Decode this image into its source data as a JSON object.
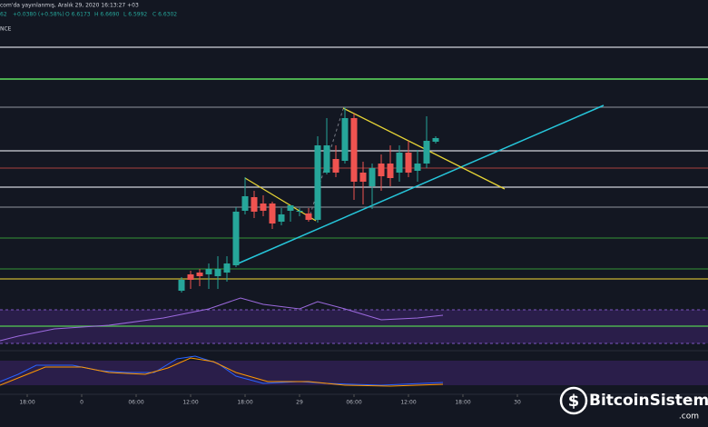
{
  "header": {
    "source": "com'da yayınlanmış, Aralık 29, 2020 16:13:27 +03",
    "quote": "62",
    "change": "+0.0380 (+0.58%)",
    "open": "O 6.6173",
    "high": "H 6.6690",
    "low": "L 6.5992",
    "close": "C 6.6302",
    "indicator": "NCE"
  },
  "watermark": {
    "name": "BitcoinSistemi",
    "suffix": ".com"
  },
  "chart_data": {
    "type": "candlestick",
    "x": [
      11,
      12,
      13,
      14,
      15,
      16,
      17,
      18,
      19,
      20,
      21,
      22,
      23,
      24,
      25,
      26,
      27,
      28,
      29,
      30,
      31,
      32,
      33,
      34,
      35,
      36,
      37,
      38,
      39
    ],
    "open": [
      6.13,
      6.184,
      6.19,
      6.184,
      6.178,
      6.19,
      6.214,
      6.394,
      6.439,
      6.418,
      6.418,
      6.358,
      6.394,
      6.394,
      6.385,
      6.364,
      6.52,
      6.565,
      6.559,
      6.7,
      6.52,
      6.475,
      6.55,
      6.55,
      6.52,
      6.586,
      6.526,
      6.55,
      6.622
    ],
    "close": [
      6.166,
      6.166,
      6.178,
      6.202,
      6.202,
      6.22,
      6.391,
      6.442,
      6.391,
      6.394,
      6.352,
      6.382,
      6.412,
      6.394,
      6.364,
      6.61,
      6.61,
      6.52,
      6.7,
      6.49,
      6.49,
      6.535,
      6.508,
      6.502,
      6.586,
      6.52,
      6.55,
      6.625,
      6.634
    ],
    "high": [
      6.175,
      6.196,
      6.202,
      6.22,
      6.244,
      6.244,
      6.406,
      6.505,
      6.46,
      6.445,
      6.424,
      6.403,
      6.412,
      6.403,
      6.403,
      6.64,
      6.7,
      6.61,
      6.736,
      6.715,
      6.556,
      6.55,
      6.58,
      6.61,
      6.61,
      6.625,
      6.595,
      6.706,
      6.64
    ],
    "low": [
      6.124,
      6.136,
      6.145,
      6.136,
      6.136,
      6.16,
      6.208,
      6.382,
      6.37,
      6.376,
      6.334,
      6.346,
      6.358,
      6.376,
      6.358,
      6.355,
      6.514,
      6.505,
      6.55,
      6.43,
      6.415,
      6.4,
      6.46,
      6.475,
      6.49,
      6.505,
      6.49,
      6.535,
      6.616
    ],
    "up_color": "#26a69a",
    "down_color": "#ef5350",
    "xlim": [
      -9,
      69
    ],
    "ylim": [
      6.1,
      7.0
    ],
    "xticks": [
      {
        "value": -6,
        "label": "18:00"
      },
      0,
      {
        "value": 6,
        "label": "06:00"
      },
      {
        "value": 12,
        "label": "12:00"
      },
      {
        "value": 18,
        "label": "18:00"
      },
      {
        "value": 24,
        "label": "29"
      },
      {
        "value": 30,
        "label": "06:00"
      },
      {
        "value": 36,
        "label": "12:00"
      },
      {
        "value": 42,
        "label": "18:00"
      },
      {
        "value": 48,
        "label": "30"
      }
    ],
    "xtick_fix": null
  }
}
